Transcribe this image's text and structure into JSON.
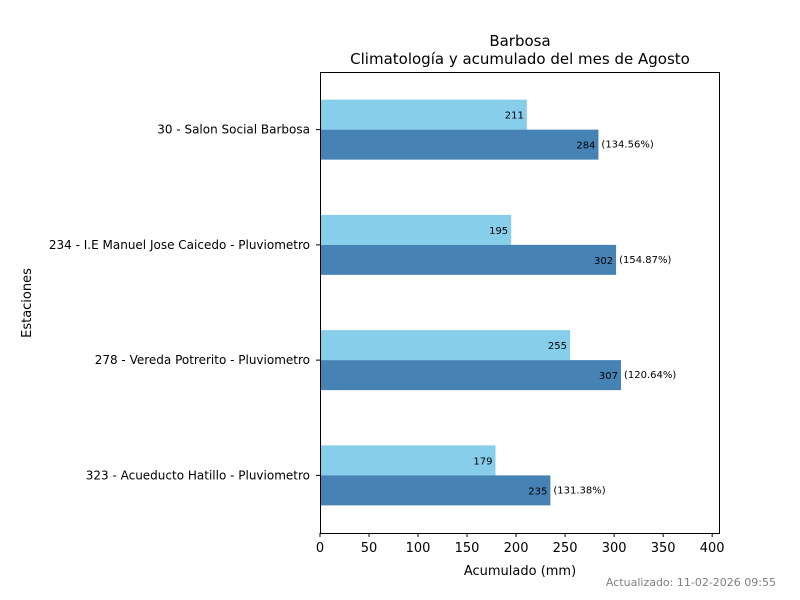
{
  "chart_data": {
    "type": "bar",
    "orientation": "horizontal",
    "title": "Barbosa",
    "subtitle": "Climatología y acumulado del mes de Agosto",
    "xlabel": "Acumulado (mm)",
    "ylabel": "Estaciones",
    "xlim": [
      0,
      408
    ],
    "xticks": [
      0,
      50,
      100,
      150,
      200,
      250,
      300,
      350,
      400
    ],
    "grid": false,
    "categories": [
      "30 - Salon Social Barbosa",
      "234 - I.E Manuel Jose Caicedo - Pluviometro",
      "278 - Vereda Potrerito - Pluviometro",
      "323 - Acueducto Hatillo - Pluviometro"
    ],
    "series": [
      {
        "name": "Climatología",
        "color": "#87ceeb",
        "values": [
          211,
          195,
          255,
          179
        ]
      },
      {
        "name": "Acumulado",
        "color": "#4682b4",
        "values": [
          284,
          302,
          307,
          235
        ],
        "annotations": [
          "(134.56%)",
          "(154.87%)",
          "(120.64%)",
          "(131.38%)"
        ]
      }
    ]
  },
  "footer": {
    "updated": "Actualizado: 11-02-2026 09:55"
  }
}
